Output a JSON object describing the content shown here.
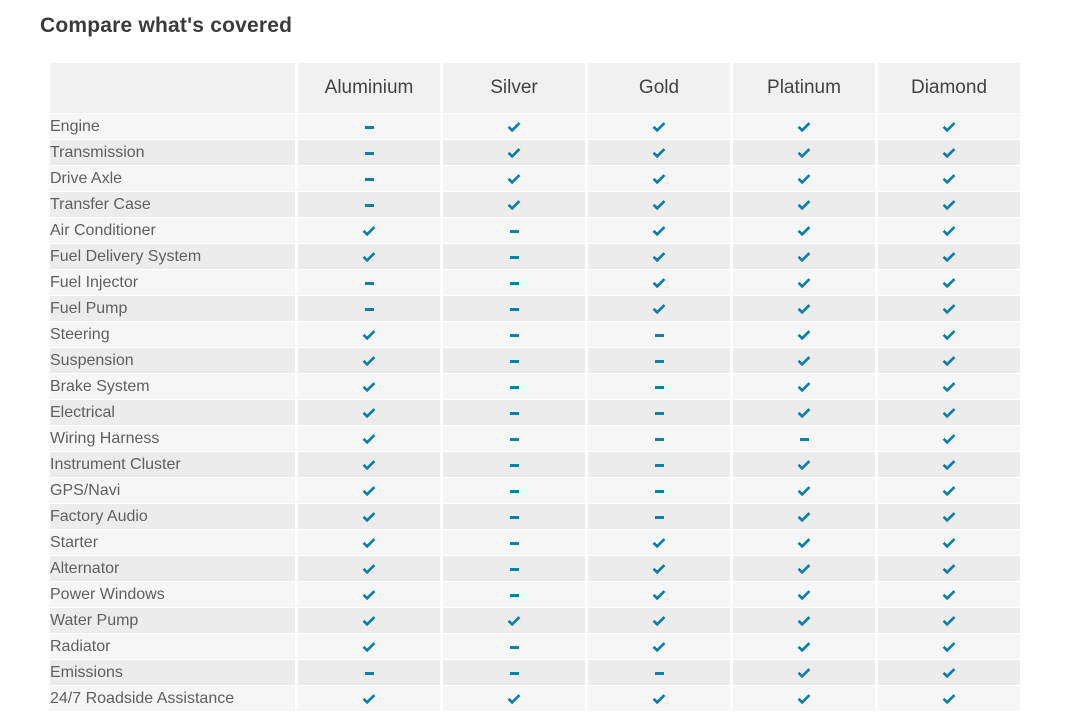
{
  "page": {
    "title": "Compare what's covered"
  },
  "colors": {
    "accent": "#0f7fa6",
    "header_bg": "#f1f1f1",
    "row_light": "#f6f6f6",
    "row_dark": "#ececec",
    "title_text": "#3b3b3b",
    "header_text": "#424242",
    "label_text": "#5f5f5f"
  },
  "table": {
    "columns": [
      "Aluminium",
      "Silver",
      "Gold",
      "Platinum",
      "Diamond"
    ],
    "rows": [
      {
        "label": "Engine",
        "values": [
          "dash",
          "check",
          "check",
          "check",
          "check"
        ]
      },
      {
        "label": "Transmission",
        "values": [
          "dash",
          "check",
          "check",
          "check",
          "check"
        ]
      },
      {
        "label": "Drive Axle",
        "values": [
          "dash",
          "check",
          "check",
          "check",
          "check"
        ]
      },
      {
        "label": "Transfer Case",
        "values": [
          "dash",
          "check",
          "check",
          "check",
          "check"
        ]
      },
      {
        "label": "Air Conditioner",
        "values": [
          "check",
          "dash",
          "check",
          "check",
          "check"
        ]
      },
      {
        "label": "Fuel Delivery System",
        "values": [
          "check",
          "dash",
          "check",
          "check",
          "check"
        ]
      },
      {
        "label": "Fuel Injector",
        "values": [
          "dash",
          "dash",
          "check",
          "check",
          "check"
        ]
      },
      {
        "label": "Fuel Pump",
        "values": [
          "dash",
          "dash",
          "check",
          "check",
          "check"
        ]
      },
      {
        "label": "Steering",
        "values": [
          "check",
          "dash",
          "dash",
          "check",
          "check"
        ]
      },
      {
        "label": "Suspension",
        "values": [
          "check",
          "dash",
          "dash",
          "check",
          "check"
        ]
      },
      {
        "label": "Brake System",
        "values": [
          "check",
          "dash",
          "dash",
          "check",
          "check"
        ]
      },
      {
        "label": "Electrical",
        "values": [
          "check",
          "dash",
          "dash",
          "check",
          "check"
        ]
      },
      {
        "label": "Wiring Harness",
        "values": [
          "check",
          "dash",
          "dash",
          "dash",
          "check"
        ]
      },
      {
        "label": "Instrument Cluster",
        "values": [
          "check",
          "dash",
          "dash",
          "check",
          "check"
        ]
      },
      {
        "label": "GPS/Navi",
        "values": [
          "check",
          "dash",
          "dash",
          "check",
          "check"
        ]
      },
      {
        "label": "Factory Audio",
        "values": [
          "check",
          "dash",
          "dash",
          "check",
          "check"
        ]
      },
      {
        "label": "Starter",
        "values": [
          "check",
          "dash",
          "check",
          "check",
          "check"
        ]
      },
      {
        "label": "Alternator",
        "values": [
          "check",
          "dash",
          "check",
          "check",
          "check"
        ]
      },
      {
        "label": "Power Windows",
        "values": [
          "check",
          "dash",
          "check",
          "check",
          "check"
        ]
      },
      {
        "label": "Water Pump",
        "values": [
          "check",
          "check",
          "check",
          "check",
          "check"
        ]
      },
      {
        "label": "Radiator",
        "values": [
          "check",
          "dash",
          "check",
          "check",
          "check"
        ]
      },
      {
        "label": "Emissions",
        "values": [
          "dash",
          "dash",
          "dash",
          "check",
          "check"
        ]
      },
      {
        "label": "24/7 Roadside Assistance",
        "values": [
          "check",
          "check",
          "check",
          "check",
          "check"
        ]
      }
    ]
  }
}
